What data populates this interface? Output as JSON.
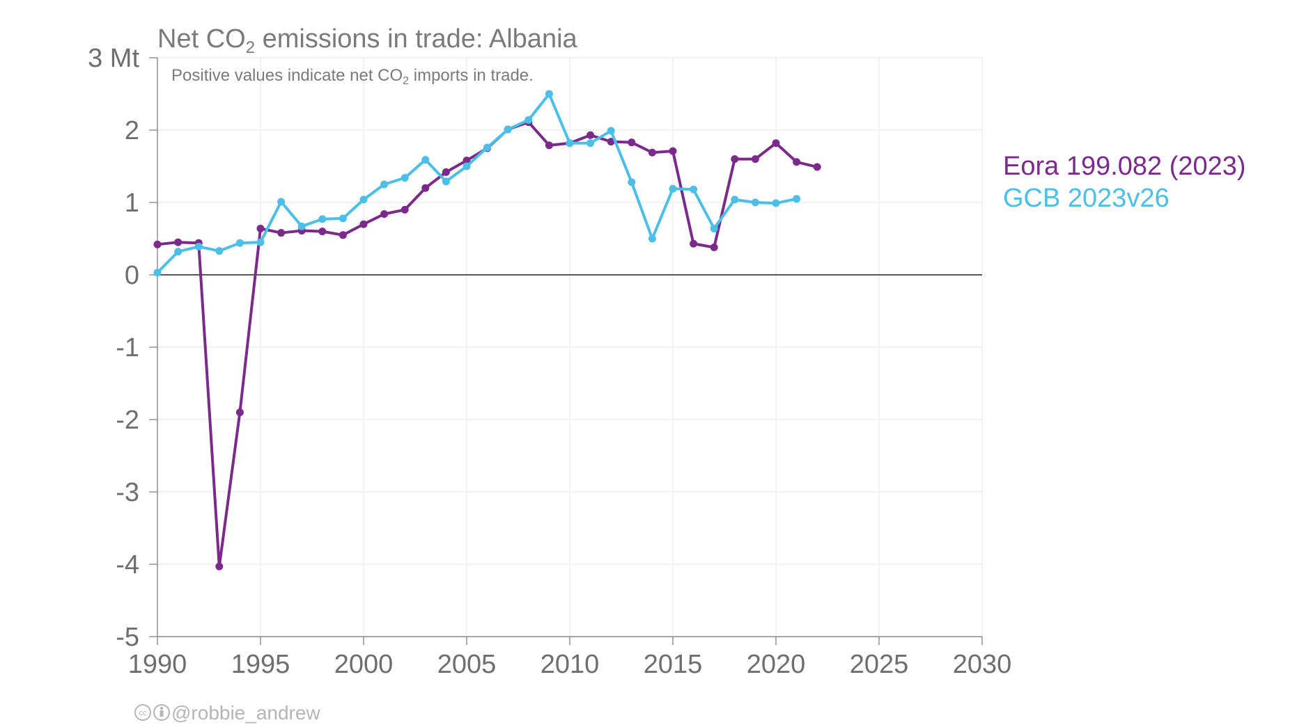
{
  "chart_data": {
    "type": "line",
    "title_main": "Net CO",
    "title_sub": "2",
    "title_rest": " emissions in trade: Albania",
    "subtitle_main": "Positive values indicate net CO",
    "subtitle_sub": "2",
    "subtitle_rest": " imports in trade.",
    "y_unit": "Mt",
    "xlim": [
      1990,
      2030
    ],
    "ylim": [
      -5,
      3
    ],
    "x_ticks": [
      "1990",
      "1995",
      "2000",
      "2005",
      "2010",
      "2015",
      "2020",
      "2025",
      "2030"
    ],
    "y_ticks": [
      "3 Mt",
      "2",
      "1",
      "0",
      "-1",
      "-2",
      "-3",
      "-4",
      "-5"
    ],
    "grid": true,
    "legend_placement": "right",
    "series": [
      {
        "name": "Eora 199.082 (2023)",
        "color": "#7b2a8c",
        "x": [
          1990,
          1991,
          1992,
          1993,
          1994,
          1995,
          1996,
          1997,
          1998,
          1999,
          2000,
          2001,
          2002,
          2003,
          2004,
          2005,
          2006,
          2007,
          2008,
          2009,
          2010,
          2011,
          2012,
          2013,
          2014,
          2015,
          2016,
          2017,
          2018,
          2019,
          2020,
          2021,
          2022
        ],
        "values": [
          0.42,
          0.45,
          0.44,
          -4.03,
          -1.9,
          0.64,
          0.58,
          0.61,
          0.6,
          0.55,
          0.7,
          0.84,
          0.9,
          1.2,
          1.42,
          1.58,
          1.75,
          2.01,
          2.11,
          1.79,
          1.82,
          1.93,
          1.84,
          1.83,
          1.69,
          1.71,
          0.43,
          0.38,
          1.6,
          1.6,
          1.82,
          1.56,
          1.49
        ]
      },
      {
        "name": "GCB 2023v26",
        "color": "#4bbfe8",
        "x": [
          1990,
          1991,
          1992,
          1993,
          1994,
          1995,
          1996,
          1997,
          1998,
          1999,
          2000,
          2001,
          2002,
          2003,
          2004,
          2005,
          2006,
          2007,
          2008,
          2009,
          2010,
          2011,
          2012,
          2013,
          2014,
          2015,
          2016,
          2017,
          2018,
          2019,
          2020,
          2021
        ],
        "values": [
          0.03,
          0.32,
          0.39,
          0.33,
          0.44,
          0.45,
          1.01,
          0.67,
          0.77,
          0.78,
          1.04,
          1.25,
          1.34,
          1.59,
          1.29,
          1.5,
          1.76,
          2.01,
          2.14,
          2.5,
          1.82,
          1.82,
          1.99,
          1.28,
          0.5,
          1.19,
          1.18,
          0.64,
          1.04,
          1.0,
          0.99,
          1.05
        ]
      }
    ]
  },
  "credit": {
    "icons": [
      "cc-icon",
      "attribution-icon"
    ],
    "handle": "@robbie_andrew"
  }
}
